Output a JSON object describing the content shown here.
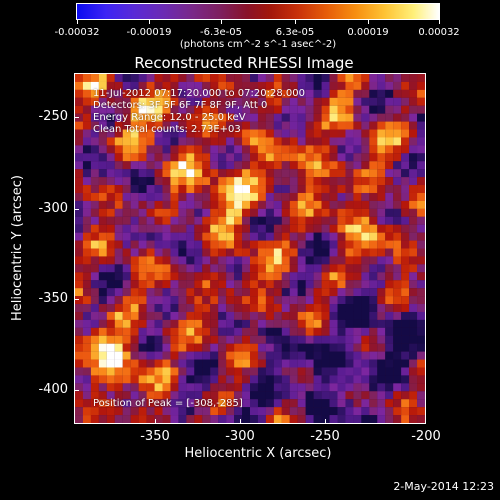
{
  "colorbar": {
    "tick_labels": [
      "-0.00032",
      "-0.00019",
      "-6.3e-05",
      "6.3e-05",
      "0.00019",
      "0.00032"
    ],
    "units": "(photons cm^-2 s^-1 asec^-2)"
  },
  "title": "Reconstructed RHESSI Image",
  "info_lines": {
    "line1": "11-Jul-2012 07:17:20.000 to 07:20:28.000",
    "line2": "Detectors: 3F 5F 6F 7F 8F 9F, Att 0",
    "line3": "Energy Range: 12.0 - 25.0 keV",
    "line4": "Clean     Total counts: 2.73E+03"
  },
  "peak": "Position of Peak = [-308,-285]",
  "axes": {
    "x_label": "Heliocentric X (arcsec)",
    "y_label": "Heliocentric Y (arcsec)",
    "x_ticks": [
      "-350",
      "-300",
      "-250",
      "-200"
    ],
    "y_ticks": [
      "-250",
      "-300",
      "-350",
      "-400"
    ]
  },
  "timestamp": "2-May-2014 12:23",
  "colors": {
    "background": "#000000",
    "text": "#ffffff"
  }
}
